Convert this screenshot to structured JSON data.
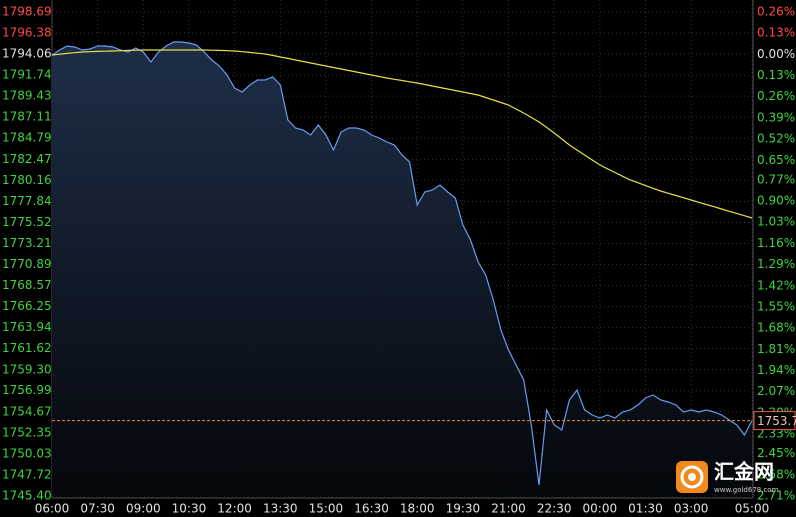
{
  "chart_data": {
    "type": "line",
    "categories": [
      "06:00",
      null,
      null,
      null,
      null,
      null,
      "07:30",
      null,
      null,
      null,
      null,
      null,
      "09:00",
      null,
      null,
      null,
      null,
      null,
      "10:30",
      null,
      null,
      null,
      null,
      null,
      "12:00",
      null,
      null,
      null,
      null,
      null,
      "13:30",
      null,
      null,
      null,
      null,
      null,
      "15:00",
      null,
      null,
      null,
      null,
      null,
      "16:30",
      null,
      null,
      null,
      null,
      null,
      "18:00",
      null,
      null,
      null,
      null,
      null,
      "19:30",
      null,
      null,
      null,
      null,
      null,
      "21:00",
      null,
      null,
      null,
      null,
      null,
      "22:30",
      null,
      null,
      null,
      null,
      null,
      "00:00",
      null,
      null,
      null,
      null,
      null,
      "01:30",
      null,
      null,
      null,
      null,
      null,
      "03:00",
      null,
      null,
      null,
      null,
      null,
      null,
      null,
      "05:00"
    ],
    "series": [
      {
        "color": "#6a9cf0",
        "values": [
          1793.96,
          1794.51,
          1794.95,
          1794.84,
          1794.51,
          1794.62,
          1794.95,
          1794.95,
          1794.84,
          1794.51,
          1794.29,
          1794.73,
          1794.29,
          1793.18,
          1794.29,
          1794.95,
          1795.39,
          1795.39,
          1795.28,
          1795.06,
          1794.29,
          1793.41,
          1792.74,
          1791.75,
          1790.32,
          1789.88,
          1790.65,
          1791.2,
          1791.2,
          1791.53,
          1790.65,
          1786.8,
          1785.92,
          1785.7,
          1785.15,
          1786.25,
          1785.15,
          1783.5,
          1785.48,
          1785.92,
          1785.92,
          1785.7,
          1785.15,
          1784.82,
          1784.38,
          1784.05,
          1782.95,
          1782.17,
          1777.44,
          1778.87,
          1779.09,
          1779.64,
          1778.87,
          1778.21,
          1775.24,
          1773.59,
          1771.16,
          1769.73,
          1766.98,
          1763.68,
          1761.48,
          1759.82,
          1758.17,
          1753.22,
          1746.61,
          1754.87,
          1753.22,
          1752.67,
          1755.97,
          1757.07,
          1754.87,
          1754.32,
          1753.99,
          1754.32,
          1753.99,
          1754.65,
          1754.87,
          1755.42,
          1756.19,
          1756.52,
          1755.97,
          1755.75,
          1755.42,
          1754.65,
          1754.87,
          1754.65,
          1754.87,
          1754.65,
          1754.32,
          1753.77,
          1753.22,
          1752.12,
          1753.7
        ]
      },
      {
        "color": "#e8e04a",
        "values": [
          1793.96,
          1794.04,
          1794.13,
          1794.21,
          1794.29,
          1794.32,
          1794.35,
          1794.37,
          1794.4,
          1794.43,
          1794.46,
          1794.48,
          1794.51,
          1794.51,
          1794.51,
          1794.51,
          1794.51,
          1794.51,
          1794.51,
          1794.51,
          1794.51,
          1794.48,
          1794.46,
          1794.43,
          1794.4,
          1794.32,
          1794.24,
          1794.15,
          1794.07,
          1793.91,
          1793.74,
          1793.58,
          1793.41,
          1793.24,
          1793.08,
          1792.91,
          1792.74,
          1792.58,
          1792.41,
          1792.25,
          1792.08,
          1791.92,
          1791.75,
          1791.59,
          1791.42,
          1791.28,
          1791.15,
          1791.01,
          1790.87,
          1790.71,
          1790.54,
          1790.38,
          1790.21,
          1790.05,
          1789.88,
          1789.72,
          1789.55,
          1789.28,
          1789.0,
          1788.73,
          1788.45,
          1788.01,
          1787.57,
          1787.08,
          1786.58,
          1785.98,
          1785.37,
          1784.71,
          1784.05,
          1783.5,
          1782.95,
          1782.4,
          1781.85,
          1781.43,
          1781.02,
          1780.6,
          1780.19,
          1779.89,
          1779.58,
          1779.28,
          1778.98,
          1778.73,
          1778.49,
          1778.24,
          1777.99,
          1777.74,
          1777.5,
          1777.25,
          1777.0,
          1776.75,
          1776.51,
          1776.26,
          1776.01
        ]
      }
    ],
    "ylim": [
      1745.4,
      1798.69
    ],
    "yticks": [
      1798.69,
      1796.38,
      1794.06,
      1791.74,
      1789.43,
      1787.11,
      1784.79,
      1782.47,
      1780.16,
      1777.84,
      1775.52,
      1773.21,
      1770.89,
      1768.57,
      1766.25,
      1763.94,
      1761.62,
      {
        "value": 1759.3,
        "label": "1759.30"
      },
      1756.99,
      1754.67,
      1752.35,
      1750.03,
      1747.72,
      {
        "value": 1745.4,
        "label": "1745.40"
      }
    ],
    "y2lim": [
      -2.71,
      0.26
    ],
    "y2ticks": [
      {
        "value": 0.26,
        "label": "0.26%"
      },
      {
        "value": 0.13,
        "label": "0.13%"
      },
      {
        "value": 0,
        "label": "0.00%"
      },
      {
        "value": -0.13,
        "label": "0.13%"
      },
      {
        "value": -0.26,
        "label": "0.26%"
      },
      {
        "value": -0.39,
        "label": "0.39%"
      },
      {
        "value": -0.52,
        "label": "0.52%"
      },
      {
        "value": -0.65,
        "label": "0.65%"
      },
      {
        "value": -0.77,
        "label": "0.77%"
      },
      {
        "value": -0.9,
        "label": "0.90%"
      },
      {
        "value": -1.03,
        "label": "1.03%"
      },
      {
        "value": -1.16,
        "label": "1.16%"
      },
      {
        "value": -1.29,
        "label": "1.29%"
      },
      {
        "value": -1.42,
        "label": "1.42%"
      },
      {
        "value": -1.55,
        "label": "1.55%"
      },
      {
        "value": -1.68,
        "label": "1.68%"
      },
      {
        "value": -1.81,
        "label": "1.81%"
      },
      {
        "value": -1.94,
        "label": "1.94%"
      },
      {
        "value": -2.07,
        "label": "2.07%"
      },
      {
        "value": -2.2,
        "label": "2.20%"
      },
      {
        "value": -2.33,
        "label": "2.33%"
      },
      {
        "value": -2.45,
        "label": "2.45%"
      },
      {
        "value": -2.58,
        "label": "2.58%"
      },
      {
        "value": -2.71,
        "label": "2.71%"
      }
    ],
    "current_price": 1753.7,
    "grid": true
  },
  "watermark": {
    "name": "汇金网",
    "url": "www.gold678.com"
  }
}
